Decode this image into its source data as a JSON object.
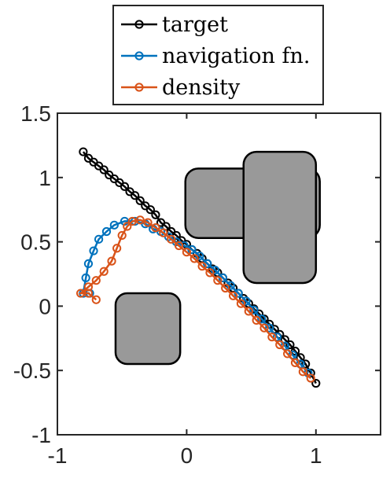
{
  "chart_data": {
    "type": "line",
    "xlim": [
      -1,
      1.5
    ],
    "ylim": [
      -1,
      1.5
    ],
    "xticks": [
      -1,
      0,
      1
    ],
    "xtick_labels": [
      "-1",
      "0",
      "1"
    ],
    "yticks": [
      -1,
      -0.5,
      0,
      0.5,
      1,
      1.5
    ],
    "ytick_labels": [
      "-1",
      "-0.5",
      "0",
      "0.5",
      "1",
      "1.5"
    ],
    "legend_position": "above plot",
    "series": [
      {
        "name": "target",
        "color": "#000000",
        "marker": "circle",
        "points": [
          [
            -0.8,
            1.2
          ],
          [
            -0.76,
            1.15
          ],
          [
            -0.72,
            1.12
          ],
          [
            -0.68,
            1.09
          ],
          [
            -0.64,
            1.06
          ],
          [
            -0.6,
            1.02
          ],
          [
            -0.56,
            0.99
          ],
          [
            -0.52,
            0.96
          ],
          [
            -0.48,
            0.93
          ],
          [
            -0.44,
            0.89
          ],
          [
            -0.4,
            0.86
          ],
          [
            -0.36,
            0.82
          ],
          [
            -0.32,
            0.78
          ],
          [
            -0.28,
            0.75
          ],
          [
            -0.24,
            0.71
          ],
          [
            -0.2,
            0.65
          ],
          [
            -0.16,
            0.62
          ],
          [
            -0.12,
            0.58
          ],
          [
            -0.08,
            0.55
          ],
          [
            -0.04,
            0.51
          ],
          [
            0.0,
            0.48
          ],
          [
            0.04,
            0.44
          ],
          [
            0.08,
            0.41
          ],
          [
            0.12,
            0.37
          ],
          [
            0.16,
            0.33
          ],
          [
            0.2,
            0.29
          ],
          [
            0.24,
            0.26
          ],
          [
            0.28,
            0.22
          ],
          [
            0.32,
            0.18
          ],
          [
            0.36,
            0.14
          ],
          [
            0.4,
            0.1
          ],
          [
            0.44,
            0.06
          ],
          [
            0.48,
            0.02
          ],
          [
            0.52,
            -0.02
          ],
          [
            0.56,
            -0.06
          ],
          [
            0.6,
            -0.1
          ],
          [
            0.64,
            -0.14
          ],
          [
            0.68,
            -0.18
          ],
          [
            0.72,
            -0.22
          ],
          [
            0.76,
            -0.26
          ],
          [
            0.8,
            -0.3
          ],
          [
            0.84,
            -0.35
          ],
          [
            0.88,
            -0.4
          ],
          [
            0.92,
            -0.45
          ],
          [
            0.96,
            -0.52
          ],
          [
            1.0,
            -0.6
          ]
        ]
      },
      {
        "name": "navigation fn.",
        "color": "#0072BD",
        "marker": "circle",
        "points": [
          [
            -0.75,
            0.1
          ],
          [
            -0.8,
            0.1
          ],
          [
            -0.78,
            0.22
          ],
          [
            -0.76,
            0.33
          ],
          [
            -0.72,
            0.43
          ],
          [
            -0.68,
            0.52
          ],
          [
            -0.62,
            0.58
          ],
          [
            -0.56,
            0.63
          ],
          [
            -0.48,
            0.66
          ],
          [
            -0.4,
            0.66
          ],
          [
            -0.32,
            0.64
          ],
          [
            -0.26,
            0.6
          ],
          [
            -0.2,
            0.58
          ],
          [
            -0.14,
            0.54
          ],
          [
            -0.08,
            0.5
          ],
          [
            -0.02,
            0.47
          ],
          [
            0.04,
            0.44
          ],
          [
            0.1,
            0.39
          ],
          [
            0.16,
            0.33
          ],
          [
            0.22,
            0.28
          ],
          [
            0.28,
            0.22
          ],
          [
            0.34,
            0.16
          ],
          [
            0.4,
            0.1
          ],
          [
            0.46,
            0.04
          ],
          [
            0.52,
            -0.03
          ],
          [
            0.58,
            -0.1
          ],
          [
            0.64,
            -0.17
          ],
          [
            0.7,
            -0.24
          ],
          [
            0.76,
            -0.31
          ],
          [
            0.82,
            -0.38
          ],
          [
            0.88,
            -0.45
          ],
          [
            0.94,
            -0.52
          ]
        ]
      },
      {
        "name": "density",
        "color": "#D95319",
        "marker": "circle",
        "points": [
          [
            -0.7,
            0.05
          ],
          [
            -0.76,
            0.1
          ],
          [
            -0.82,
            0.1
          ],
          [
            -0.76,
            0.15
          ],
          [
            -0.7,
            0.2
          ],
          [
            -0.64,
            0.27
          ],
          [
            -0.58,
            0.35
          ],
          [
            -0.54,
            0.45
          ],
          [
            -0.5,
            0.55
          ],
          [
            -0.46,
            0.62
          ],
          [
            -0.42,
            0.66
          ],
          [
            -0.36,
            0.67
          ],
          [
            -0.3,
            0.65
          ],
          [
            -0.24,
            0.61
          ],
          [
            -0.18,
            0.57
          ],
          [
            -0.12,
            0.52
          ],
          [
            -0.06,
            0.47
          ],
          [
            0.0,
            0.42
          ],
          [
            0.06,
            0.37
          ],
          [
            0.12,
            0.31
          ],
          [
            0.18,
            0.26
          ],
          [
            0.24,
            0.2
          ],
          [
            0.3,
            0.14
          ],
          [
            0.36,
            0.08
          ],
          [
            0.42,
            0.02
          ],
          [
            0.48,
            -0.04
          ],
          [
            0.54,
            -0.11
          ],
          [
            0.6,
            -0.17
          ],
          [
            0.66,
            -0.24
          ],
          [
            0.72,
            -0.3
          ],
          [
            0.78,
            -0.37
          ],
          [
            0.84,
            -0.44
          ],
          [
            0.9,
            -0.51
          ],
          [
            0.96,
            -0.56
          ]
        ]
      }
    ],
    "obstacles": [
      {
        "name": "obstacle-lower-left",
        "color": "#999999",
        "x": [
          -0.55,
          -0.05
        ],
        "y": [
          -0.45,
          0.1
        ],
        "corner": 0.09
      },
      {
        "name": "obstacle-upper-wide",
        "color": "#999999",
        "x": [
          -0.01,
          1.03
        ],
        "y": [
          0.53,
          1.07
        ],
        "corner": 0.1
      },
      {
        "name": "obstacle-upper-tall",
        "color": "#999999",
        "x": [
          0.44,
          1.0
        ],
        "y": [
          0.18,
          1.2
        ],
        "corner": 0.1
      }
    ]
  }
}
